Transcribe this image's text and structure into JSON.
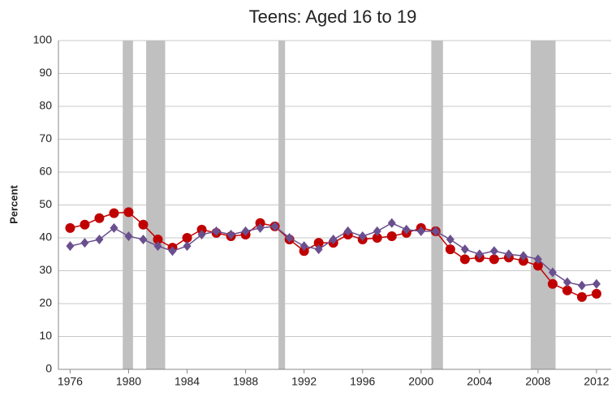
{
  "chart_data": {
    "type": "line",
    "title": "Teens: Aged 16 to 19",
    "y_label": "Percent",
    "x": [
      1976,
      1977,
      1978,
      1979,
      1980,
      1981,
      1982,
      1983,
      1984,
      1985,
      1986,
      1987,
      1988,
      1989,
      1990,
      1991,
      1992,
      1993,
      1994,
      1995,
      1996,
      1997,
      1998,
      1999,
      2000,
      2001,
      2002,
      2003,
      2004,
      2005,
      2006,
      2007,
      2008,
      2009,
      2010,
      2011,
      2012
    ],
    "series": [
      {
        "color": "#c00000",
        "marker": "circle",
        "values": [
          43,
          44,
          46,
          47.5,
          47.8,
          44,
          39.5,
          37,
          40,
          42.5,
          41.5,
          40.5,
          41,
          44.5,
          43.5,
          39.5,
          36,
          38.5,
          38.5,
          41,
          39.5,
          40,
          40.5,
          41.5,
          43,
          42,
          36.5,
          33.5,
          34,
          33.5,
          34,
          33,
          31.5,
          26,
          24,
          22,
          23
        ]
      },
      {
        "color": "#6a4f8e",
        "marker": "diamond",
        "values": [
          37.5,
          38.5,
          39.5,
          43,
          40.5,
          39.5,
          37.5,
          36,
          37.5,
          41,
          42,
          41,
          42,
          43,
          43.5,
          40,
          37.5,
          36.5,
          39.5,
          42,
          40.5,
          42,
          44.5,
          42.5,
          42,
          42,
          39.5,
          36.5,
          35,
          36,
          35,
          34.5,
          33.5,
          29.5,
          26.5,
          25.5,
          26
        ]
      }
    ],
    "shaded_periods": [
      [
        1979.6,
        1980.3
      ],
      [
        1981.2,
        1982.5
      ],
      [
        1990.25,
        1990.7
      ],
      [
        2000.7,
        2001.5
      ],
      [
        2007.5,
        2009.2
      ]
    ],
    "shade_color": "#c0c0c0",
    "xlim": [
      1975.2,
      2013
    ],
    "xticks": [
      1976,
      1980,
      1984,
      1988,
      1992,
      1996,
      2000,
      2004,
      2008,
      2012
    ],
    "ylim": [
      0,
      100
    ],
    "yticks": [
      0,
      10,
      20,
      30,
      40,
      50,
      60,
      70,
      80,
      90,
      100
    ],
    "grid": true
  }
}
